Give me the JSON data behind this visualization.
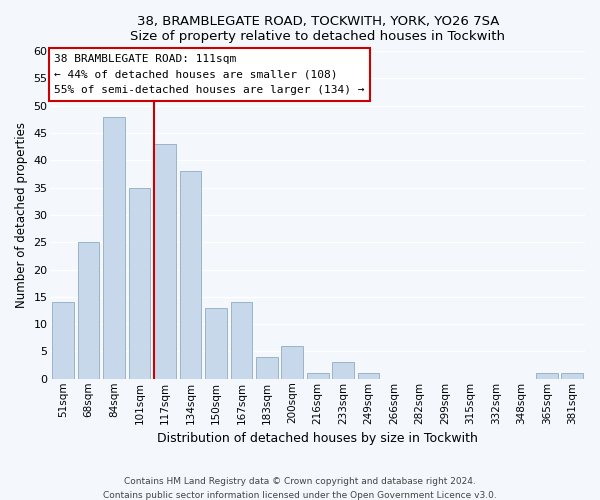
{
  "title1": "38, BRAMBLEGATE ROAD, TOCKWITH, YORK, YO26 7SA",
  "title2": "Size of property relative to detached houses in Tockwith",
  "xlabel": "Distribution of detached houses by size in Tockwith",
  "ylabel": "Number of detached properties",
  "bin_labels": [
    "51sqm",
    "68sqm",
    "84sqm",
    "101sqm",
    "117sqm",
    "134sqm",
    "150sqm",
    "167sqm",
    "183sqm",
    "200sqm",
    "216sqm",
    "233sqm",
    "249sqm",
    "266sqm",
    "282sqm",
    "299sqm",
    "315sqm",
    "332sqm",
    "348sqm",
    "365sqm",
    "381sqm"
  ],
  "bin_values": [
    14,
    25,
    48,
    35,
    43,
    38,
    13,
    14,
    4,
    6,
    1,
    3,
    1,
    0,
    0,
    0,
    0,
    0,
    0,
    1,
    1
  ],
  "bar_color": "#c8d8eb",
  "bar_edge_color": "#9ab4cc",
  "property_line_label": "38 BRAMBLEGATE ROAD: 111sqm",
  "annotation_line1": "← 44% of detached houses are smaller (108)",
  "annotation_line2": "55% of semi-detached houses are larger (134) →",
  "property_line_color": "#cc0000",
  "annotation_box_color": "#ffffff",
  "annotation_box_edge": "#cc0000",
  "ylim": [
    0,
    60
  ],
  "yticks": [
    0,
    5,
    10,
    15,
    20,
    25,
    30,
    35,
    40,
    45,
    50,
    55,
    60
  ],
  "footer1": "Contains HM Land Registry data © Crown copyright and database right 2024.",
  "footer2": "Contains public sector information licensed under the Open Government Licence v3.0.",
  "bg_color": "#f4f8fc",
  "grid_color": "#ffffff",
  "property_line_x": 3.575
}
